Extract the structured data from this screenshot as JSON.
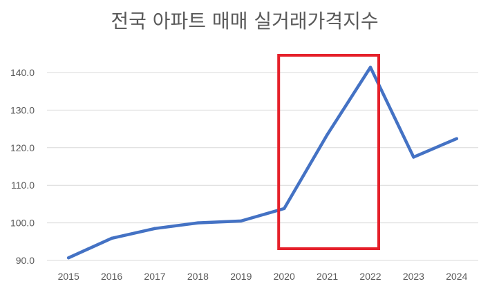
{
  "chart_data": {
    "type": "line",
    "title": "전국 아파트 매매 실거래가격지수",
    "xlabel": "",
    "ylabel": "",
    "categories": [
      "2015",
      "2016",
      "2017",
      "2018",
      "2019",
      "2020",
      "2021",
      "2022",
      "2023",
      "2024"
    ],
    "series": [
      {
        "values": [
          90.7,
          95.9,
          98.5,
          100.0,
          100.5,
          103.8,
          123.5,
          141.4,
          117.5,
          122.4
        ]
      }
    ],
    "y_ticks": [
      "90.0",
      "100.0",
      "110.0",
      "120.0",
      "130.0",
      "140.0"
    ],
    "ylim": [
      90,
      145
    ],
    "grid": true,
    "legend": "none",
    "highlight": {
      "from": "2020",
      "to": "2022",
      "color": "#e5202a"
    },
    "line_color": "#4472c4"
  }
}
